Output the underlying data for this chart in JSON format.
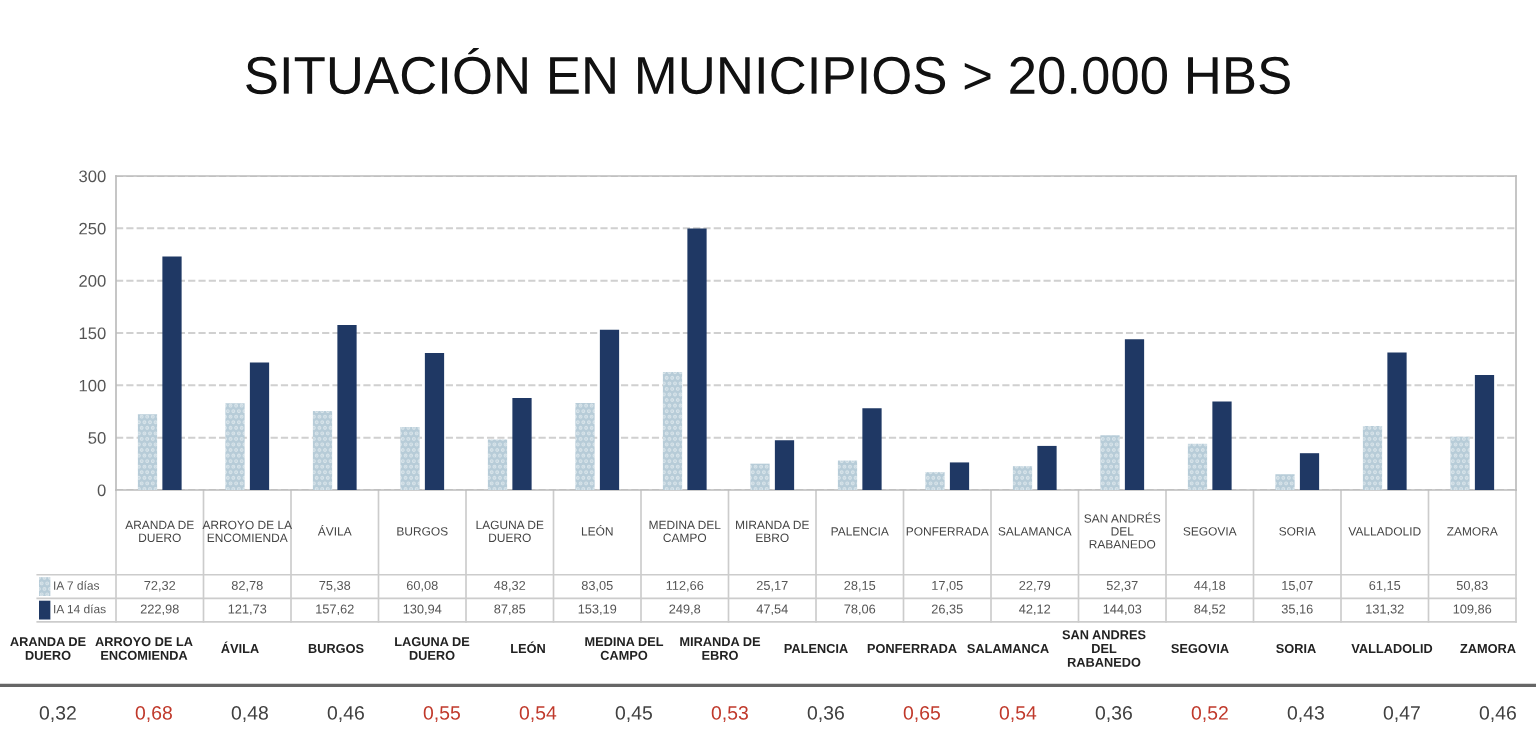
{
  "chart_data": [
    {
      "type": "bar",
      "title": "SITUACIÓN EN MUNICIPIOS > 20.000 HBS",
      "categories": [
        "ARANDA DE\nDUERO",
        "ARROYO DE LA\nENCOMIENDA",
        "ÁVILA",
        "BURGOS",
        "LAGUNA DE\nDUERO",
        "LEÓN",
        "MEDINA DEL\nCAMPO",
        "MIRANDA DE\nEBRO",
        "PALENCIA",
        "PONFERRADA",
        "SALAMANCA",
        "SAN ANDRÉS\nDEL\nRABANEDO",
        "SEGOVIA",
        "SORIA",
        "VALLADOLID",
        "ZAMORA"
      ],
      "series": [
        {
          "name": "IA 7 días",
          "color": "#b7ccd8",
          "values": [
            72.32,
            82.78,
            75.38,
            60.08,
            48.32,
            83.05,
            112.66,
            25.17,
            28.15,
            17.05,
            22.79,
            52.37,
            44.18,
            15.07,
            61.15,
            50.83
          ],
          "value_labels": [
            "72,32",
            "82,78",
            "75,38",
            "60,08",
            "48,32",
            "83,05",
            "112,66",
            "25,17",
            "28,15",
            "17,05",
            "22,79",
            "52,37",
            "44,18",
            "15,07",
            "61,15",
            "50,83"
          ]
        },
        {
          "name": "IA 14 días",
          "color": "#1f3864",
          "values": [
            222.98,
            121.73,
            157.62,
            130.94,
            87.85,
            153.19,
            249.8,
            47.54,
            78.06,
            26.35,
            42.12,
            144.03,
            84.52,
            35.16,
            131.32,
            109.86
          ],
          "value_labels": [
            "222,98",
            "121,73",
            "157,62",
            "130,94",
            "87,85",
            "153,19",
            "249,8",
            "47,54",
            "78,06",
            "26,35",
            "42,12",
            "144,03",
            "84,52",
            "35,16",
            "131,32",
            "109,86"
          ]
        }
      ],
      "ylim": [
        0,
        300
      ],
      "yticks": [
        0,
        50,
        100,
        150,
        200,
        250,
        300
      ],
      "grid": "y",
      "legend": "bottom left"
    },
    {
      "type": "other",
      "categories": [
        "ARANDA DE\nDUERO",
        "ARROYO DE LA\nENCOMIENDA",
        "ÁVILA",
        "BURGOS",
        "LAGUNA DE\nDUERO",
        "LEÓN",
        "MEDINA DEL\nCAMPO",
        "MIRANDA DE\nEBRO",
        "PALENCIA",
        "PONFERRADA",
        "SALAMANCA",
        "SAN ANDRES\nDEL\nRABANEDO",
        "SEGOVIA",
        "SORIA",
        "VALLADOLID",
        "ZAMORA"
      ],
      "value_labels": [
        "0,32",
        "0,68",
        "0,48",
        "0,46",
        "0,55",
        "0,54",
        "0,45",
        "0,53",
        "0,36",
        "0,65",
        "0,54",
        "0,36",
        "0,52",
        "0,43",
        "0,47",
        "0,46"
      ],
      "colors": [
        "#404040",
        "#c0392b",
        "#404040",
        "#404040",
        "#c0392b",
        "#c0392b",
        "#404040",
        "#c0392b",
        "#404040",
        "#c0392b",
        "#c0392b",
        "#404040",
        "#c0392b",
        "#404040",
        "#404040",
        "#404040"
      ]
    }
  ]
}
